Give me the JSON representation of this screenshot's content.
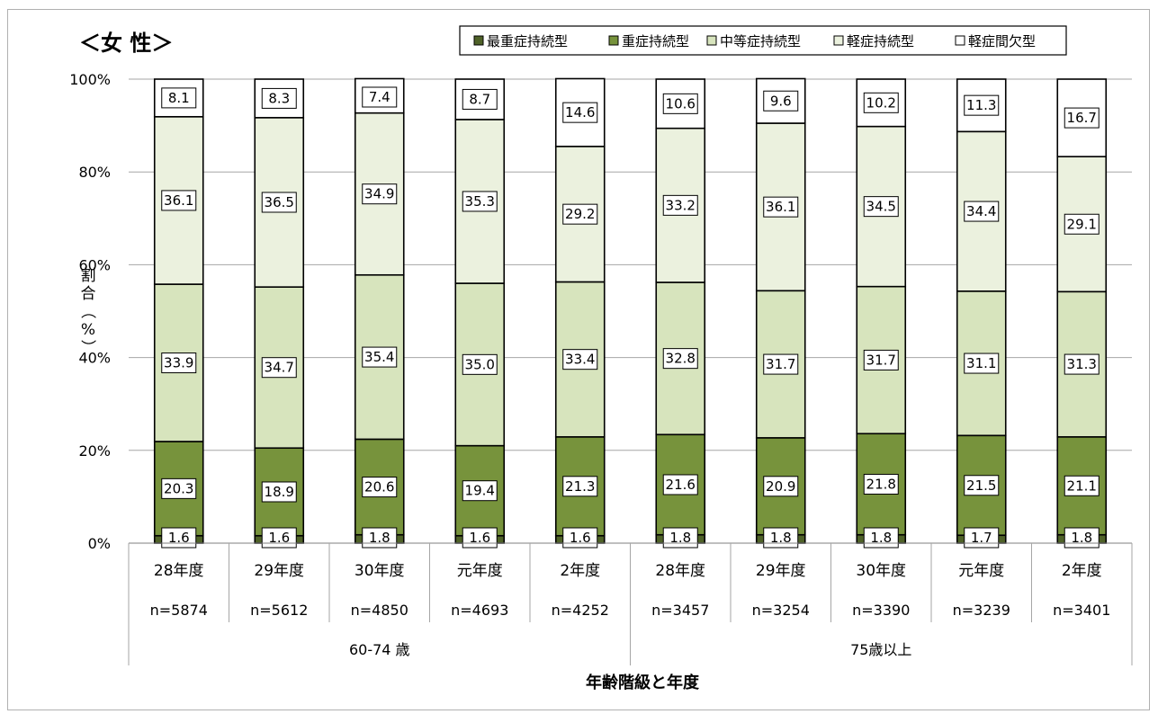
{
  "chart_data": {
    "type": "bar",
    "stacked": true,
    "percent": true,
    "title": "＜女 性＞",
    "xlabel": "年齢階級と年度",
    "ylabel": "割合（%）",
    "ylim": [
      0,
      100
    ],
    "yticks": [
      "0%",
      "20%",
      "40%",
      "60%",
      "80%",
      "100%"
    ],
    "groups": [
      {
        "label": "60-74 歳",
        "categories": [
          "28年度",
          "29年度",
          "30年度",
          "元年度",
          "2年度"
        ],
        "n": [
          "n=5874",
          "n=5612",
          "n=4850",
          "n=4693",
          "n=4252"
        ]
      },
      {
        "label": "75歳以上",
        "categories": [
          "28年度",
          "29年度",
          "30年度",
          "元年度",
          "2年度"
        ],
        "n": [
          "n=3457",
          "n=3254",
          "n=3390",
          "n=3239",
          "n=3401"
        ]
      }
    ],
    "series": [
      {
        "name": "最重症持続型",
        "color": "#4f6228",
        "values": [
          1.6,
          1.6,
          1.8,
          1.6,
          1.6,
          1.8,
          1.8,
          1.8,
          1.7,
          1.8
        ]
      },
      {
        "name": "重症持続型",
        "color": "#77933c",
        "values": [
          20.3,
          18.9,
          20.6,
          19.4,
          21.3,
          21.6,
          20.9,
          21.8,
          21.5,
          21.1
        ]
      },
      {
        "name": "中等症持続型",
        "color": "#d7e4bd",
        "values": [
          33.9,
          34.7,
          35.4,
          35.0,
          33.4,
          32.8,
          31.7,
          31.7,
          31.1,
          31.3
        ]
      },
      {
        "name": "軽症持続型",
        "color": "#ebf1de",
        "values": [
          36.1,
          36.5,
          34.9,
          35.3,
          29.2,
          33.2,
          36.1,
          34.5,
          34.4,
          29.1
        ]
      },
      {
        "name": "軽症間欠型",
        "color": "#ffffff",
        "values": [
          8.1,
          8.3,
          7.4,
          8.7,
          14.6,
          10.6,
          9.6,
          10.2,
          11.3,
          16.7
        ]
      }
    ],
    "legend": "top",
    "grid": true
  }
}
